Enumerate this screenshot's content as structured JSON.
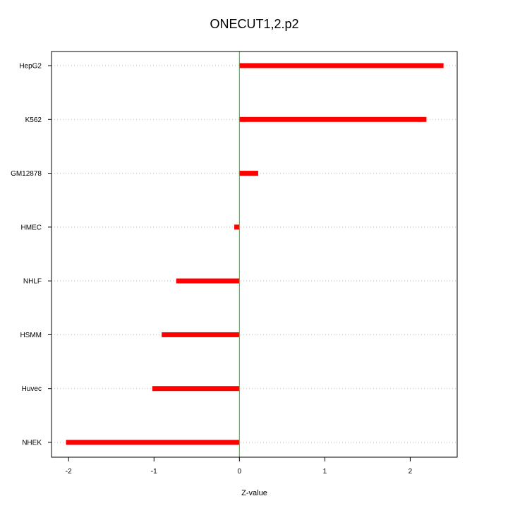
{
  "chart_data": {
    "type": "bar",
    "orientation": "horizontal",
    "title": "ONECUT1,2.p2",
    "xlabel": "Z-value",
    "ylabel": "",
    "categories": [
      "HepG2",
      "K562",
      "GM12878",
      "HMEC",
      "NHLF",
      "HSMM",
      "Huvec",
      "NHEK"
    ],
    "values": [
      2.39,
      2.19,
      0.22,
      -0.06,
      -0.74,
      -0.91,
      -1.02,
      -2.03
    ],
    "xlim": [
      -2.2,
      2.55
    ],
    "xticks": [
      -2,
      -1,
      0,
      1,
      2
    ],
    "xtick_labels": [
      "-2",
      "-1",
      "0",
      "1",
      "2"
    ],
    "grid": "horizontal-dotted",
    "reference_line": 0,
    "colors": {
      "bar": "#ff0000",
      "reference_line": "#00cc00",
      "grid": "#bbbbbb",
      "axis": "#000000"
    }
  }
}
